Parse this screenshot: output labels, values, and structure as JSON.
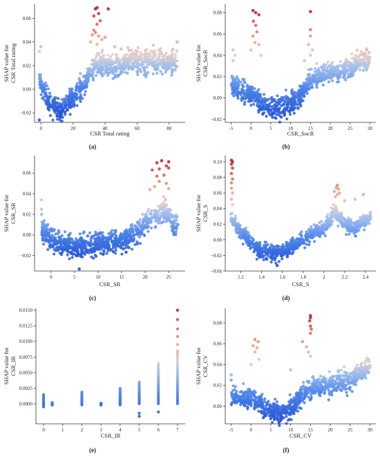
{
  "chart_data": [
    {
      "id": "a",
      "type": "scatter",
      "panel_label": "(a)",
      "xlabel": "CSR Total rating",
      "ylabel_lines": [
        "SHAP value for",
        "CSR Total rating"
      ],
      "xlim": [
        -4,
        90
      ],
      "ylim": [
        -0.028,
        0.072
      ],
      "xticks": [
        0,
        20,
        40,
        60,
        80
      ],
      "yticks": [
        -0.02,
        0.0,
        0.02,
        0.04,
        0.06
      ],
      "ytick_labels": [
        "−0.02",
        "0.00",
        "0.02",
        "0.04",
        "0.06"
      ],
      "color_range": [
        -0.02,
        0.068
      ],
      "trend": [
        [
          -1,
          0.01
        ],
        [
          5,
          -0.012
        ],
        [
          12,
          -0.018
        ],
        [
          20,
          -0.008
        ],
        [
          27,
          0.005
        ],
        [
          32,
          0.018
        ],
        [
          38,
          0.022
        ],
        [
          45,
          0.018
        ],
        [
          55,
          0.024
        ],
        [
          65,
          0.024
        ],
        [
          75,
          0.022
        ],
        [
          85,
          0.024
        ]
      ],
      "spread": 0.008,
      "highlights": [
        [
          33,
          0.062
        ],
        [
          34,
          0.068
        ],
        [
          35,
          0.069
        ],
        [
          36,
          0.064
        ],
        [
          42,
          0.068
        ],
        [
          37,
          0.058
        ],
        [
          35,
          0.055
        ],
        [
          33,
          0.05
        ],
        [
          32,
          0.046
        ],
        [
          36,
          0.045
        ],
        [
          38,
          0.042
        ],
        [
          40,
          0.044
        ],
        [
          34,
          0.048
        ],
        [
          46,
          0.036
        ],
        [
          50,
          0.034
        ],
        [
          55,
          0.033
        ],
        [
          60,
          0.032
        ],
        [
          65,
          0.03
        ],
        [
          70,
          0.031
        ],
        [
          85,
          0.04
        ],
        [
          0,
          0.036
        ],
        [
          -1,
          0.032
        ],
        [
          31,
          0.04
        ],
        [
          35,
          0.038
        ],
        [
          -1,
          -0.026
        ],
        [
          13,
          -0.027
        ]
      ]
    },
    {
      "id": "b",
      "type": "scatter",
      "panel_label": "(b)",
      "xlabel": "CSR_SocR",
      "ylabel_lines": [
        "SHAP value for",
        "CSR_SocR"
      ],
      "xlim": [
        -6.5,
        31.5
      ],
      "ylim": [
        -0.023,
        0.088
      ],
      "xticks": [
        -5,
        0,
        5,
        10,
        15,
        20,
        25,
        30
      ],
      "yticks": [
        -0.02,
        0.0,
        0.02,
        0.04,
        0.06,
        0.08
      ],
      "ytick_labels": [
        "−0.02",
        "0.00",
        "0.02",
        "0.04",
        "0.06",
        "0.08"
      ],
      "color_range": [
        -0.015,
        0.082
      ],
      "trend": [
        [
          -5,
          0.015
        ],
        [
          -3,
          0.008
        ],
        [
          0,
          0.005
        ],
        [
          2,
          -0.003
        ],
        [
          4,
          -0.008
        ],
        [
          6,
          -0.01
        ],
        [
          8,
          -0.008
        ],
        [
          10,
          -0.005
        ],
        [
          12,
          0.0
        ],
        [
          14,
          0.01
        ],
        [
          15,
          0.02
        ],
        [
          17,
          0.02
        ],
        [
          20,
          0.025
        ],
        [
          25,
          0.028
        ],
        [
          30,
          0.038
        ]
      ],
      "spread": 0.008,
      "highlights": [
        [
          0.5,
          0.082
        ],
        [
          1.2,
          0.08
        ],
        [
          2,
          0.078
        ],
        [
          15,
          0.081
        ],
        [
          0.6,
          0.072
        ],
        [
          1.2,
          0.068
        ],
        [
          1.5,
          0.062
        ],
        [
          0.5,
          0.058
        ],
        [
          1,
          0.052
        ],
        [
          2,
          0.05
        ],
        [
          0,
          0.045
        ],
        [
          2.5,
          0.04
        ],
        [
          -4.5,
          0.045
        ],
        [
          -4,
          0.04
        ],
        [
          -4.5,
          0.035
        ],
        [
          15,
          0.064
        ],
        [
          15,
          0.058
        ],
        [
          14.5,
          0.05
        ],
        [
          15.5,
          0.045
        ],
        [
          15,
          0.04
        ],
        [
          13.5,
          0.035
        ],
        [
          18,
          0.028
        ],
        [
          22,
          0.03
        ],
        [
          24,
          0.036
        ],
        [
          25,
          0.02
        ],
        [
          30,
          0.038
        ],
        [
          3,
          -0.015
        ]
      ]
    },
    {
      "id": "c",
      "type": "scatter",
      "panel_label": "(c)",
      "xlabel": "CSR_SR",
      "ylabel_lines": [
        "SHAP value for",
        "CSR_SR"
      ],
      "xlim": [
        -3.5,
        28.5
      ],
      "ylim": [
        -0.035,
        0.077
      ],
      "xticks": [
        0,
        5,
        10,
        15,
        20,
        25
      ],
      "yticks": [
        -0.02,
        0.0,
        0.02,
        0.04,
        0.06
      ],
      "ytick_labels": [
        "−0.02",
        "0.00",
        "0.02",
        "0.04",
        "0.06"
      ],
      "color_range": [
        -0.02,
        0.072
      ],
      "trend": [
        [
          -2,
          0.006
        ],
        [
          0,
          -0.005
        ],
        [
          3,
          -0.01
        ],
        [
          6,
          -0.012
        ],
        [
          9,
          -0.01
        ],
        [
          12,
          -0.008
        ],
        [
          15,
          -0.005
        ],
        [
          18,
          0.0
        ],
        [
          20,
          0.01
        ],
        [
          22,
          0.018
        ],
        [
          24,
          0.025
        ],
        [
          25,
          0.02
        ],
        [
          26,
          0.01
        ],
        [
          27,
          0.01
        ]
      ],
      "spread": 0.009,
      "highlights": [
        [
          22.5,
          0.07
        ],
        [
          23.5,
          0.072
        ],
        [
          25,
          0.071
        ],
        [
          24.5,
          0.067
        ],
        [
          21.5,
          0.063
        ],
        [
          23,
          0.064
        ],
        [
          25,
          0.065
        ],
        [
          22.5,
          0.057
        ],
        [
          24,
          0.058
        ],
        [
          23,
          0.052
        ],
        [
          24.5,
          0.05
        ],
        [
          22,
          0.047
        ],
        [
          25,
          0.045
        ],
        [
          21,
          0.044
        ],
        [
          -2,
          0.034
        ],
        [
          -2,
          0.025
        ],
        [
          -2,
          0.02
        ],
        [
          6,
          -0.033
        ],
        [
          27,
          0.01
        ],
        [
          26,
          0.006
        ]
      ]
    },
    {
      "id": "d",
      "type": "scatter",
      "panel_label": "(d)",
      "xlabel": "CSR_S",
      "ylabel_lines": [
        "SHAP value for",
        "CSR_S"
      ],
      "xlim": [
        1.05,
        2.5
      ],
      "ylim": [
        -0.04,
        0.108
      ],
      "xticks": [
        1.2,
        1.4,
        1.6,
        1.8,
        2.0,
        2.2,
        2.4
      ],
      "yticks": [
        -0.04,
        -0.02,
        0.0,
        0.02,
        0.04,
        0.06,
        0.08,
        0.1
      ],
      "ytick_labels": [
        "−0.04",
        "−0.02",
        "0.00",
        "0.02",
        "0.04",
        "0.06",
        "0.08",
        "0.10"
      ],
      "color_range": [
        -0.03,
        0.1
      ],
      "trend": [
        [
          1.1,
          0.03
        ],
        [
          1.15,
          0.02
        ],
        [
          1.2,
          0.01
        ],
        [
          1.3,
          -0.005
        ],
        [
          1.4,
          -0.015
        ],
        [
          1.5,
          -0.018
        ],
        [
          1.6,
          -0.015
        ],
        [
          1.7,
          -0.01
        ],
        [
          1.8,
          0.0
        ],
        [
          1.9,
          0.01
        ],
        [
          2.0,
          0.015
        ],
        [
          2.1,
          0.035
        ],
        [
          2.15,
          0.03
        ],
        [
          2.2,
          0.02
        ],
        [
          2.3,
          0.015
        ],
        [
          2.45,
          0.03
        ]
      ],
      "spread": 0.008,
      "highlights": [
        [
          1.11,
          0.102
        ],
        [
          1.12,
          0.1
        ],
        [
          1.11,
          0.097
        ],
        [
          1.12,
          0.092
        ],
        [
          1.11,
          0.085
        ],
        [
          1.12,
          0.078
        ],
        [
          1.11,
          0.073
        ],
        [
          1.11,
          0.066
        ],
        [
          1.12,
          0.06
        ],
        [
          1.11,
          0.052
        ],
        [
          1.12,
          0.045
        ],
        [
          2.13,
          0.07
        ],
        [
          2.12,
          0.067
        ],
        [
          2.14,
          0.065
        ],
        [
          2.1,
          0.062
        ],
        [
          2.15,
          0.06
        ],
        [
          2.13,
          0.058
        ],
        [
          2.11,
          0.055
        ],
        [
          2.2,
          0.05
        ],
        [
          2.3,
          0.052
        ],
        [
          2.38,
          0.058
        ],
        [
          2.45,
          0.03
        ],
        [
          1.55,
          -0.033
        ]
      ]
    },
    {
      "id": "e",
      "type": "scatter",
      "panel_label": "(e)",
      "xlabel": "CSR_IR",
      "ylabel_lines": [
        "SHAP value for",
        "CSR_IR"
      ],
      "xlim": [
        -0.4,
        7.4
      ],
      "ylim": [
        -0.0032,
        0.0153
      ],
      "xticks": [
        0,
        1,
        2,
        3,
        4,
        5,
        6,
        7
      ],
      "yticks": [
        0.0,
        0.0025,
        0.005,
        0.0075,
        0.01,
        0.0125,
        0.015
      ],
      "ytick_labels": [
        "0.0000",
        "0.0025",
        "0.0050",
        "0.0075",
        "0.0100",
        "0.0125",
        "0.0150"
      ],
      "color_range": [
        -0.003,
        0.015
      ],
      "columns": [
        {
          "x": 0,
          "lo": -0.0005,
          "hi": 0.0015
        },
        {
          "x": 0.45,
          "lo": -0.0002,
          "hi": 0.0002
        },
        {
          "x": 2,
          "lo": -0.0002,
          "hi": 0.0019
        },
        {
          "x": 3,
          "lo": -0.0002,
          "hi": 0.0001
        },
        {
          "x": 4,
          "lo": -0.0002,
          "hi": 0.0025
        },
        {
          "x": 5,
          "lo": 0.0,
          "hi": 0.0035
        },
        {
          "x": 6,
          "lo": 0.0,
          "hi": 0.0065
        },
        {
          "x": 7,
          "lo": 0.0,
          "hi": 0.0085
        }
      ],
      "highlights": [
        [
          5,
          -0.0015
        ],
        [
          5,
          -0.002
        ],
        [
          6,
          -0.0013
        ],
        [
          7,
          0.015
        ],
        [
          7,
          0.0135
        ],
        [
          7,
          0.012
        ],
        [
          7,
          0.0108
        ],
        [
          7,
          0.0095
        ]
      ]
    },
    {
      "id": "f",
      "type": "scatter",
      "panel_label": "(f)",
      "xlabel": "CSR_CV",
      "ylabel_lines": [
        "SHAP value for",
        "CSR_CV"
      ],
      "xlim": [
        -6.5,
        31.5
      ],
      "ylim": [
        -0.017,
        0.094
      ],
      "xticks": [
        -5,
        0,
        5,
        10,
        15,
        20,
        25,
        30
      ],
      "yticks": [
        0.0,
        0.02,
        0.04,
        0.06,
        0.08
      ],
      "ytick_labels": [
        "0.00",
        "0.02",
        "0.04",
        "0.06",
        "0.08"
      ],
      "color_range": [
        -0.012,
        0.087
      ],
      "trend": [
        [
          -5,
          0.01
        ],
        [
          -3,
          0.008
        ],
        [
          0,
          0.006
        ],
        [
          2,
          0.003
        ],
        [
          4,
          -0.003
        ],
        [
          6,
          -0.006
        ],
        [
          8,
          -0.006
        ],
        [
          10,
          -0.003
        ],
        [
          12,
          0.008
        ],
        [
          14,
          0.015
        ],
        [
          15,
          0.018
        ],
        [
          17,
          0.018
        ],
        [
          20,
          0.02
        ],
        [
          25,
          0.025
        ],
        [
          30,
          0.038
        ]
      ],
      "spread": 0.008,
      "highlights": [
        [
          15,
          0.087
        ],
        [
          15,
          0.085
        ],
        [
          14.8,
          0.082
        ],
        [
          15,
          0.077
        ],
        [
          15.2,
          0.074
        ],
        [
          15,
          0.07
        ],
        [
          13,
          0.062
        ],
        [
          14,
          0.057
        ],
        [
          14.5,
          0.052
        ],
        [
          15,
          0.048
        ],
        [
          1,
          0.064
        ],
        [
          1.8,
          0.062
        ],
        [
          0.5,
          0.058
        ],
        [
          1.5,
          0.056
        ],
        [
          1,
          0.052
        ],
        [
          2,
          0.045
        ],
        [
          0,
          0.04
        ],
        [
          -5,
          0.03
        ],
        [
          -5,
          0.025
        ],
        [
          10,
          0.035
        ],
        [
          22,
          0.033
        ],
        [
          24,
          0.032
        ],
        [
          30,
          0.039
        ],
        [
          25,
          0.018
        ],
        [
          5,
          -0.012
        ]
      ]
    }
  ]
}
